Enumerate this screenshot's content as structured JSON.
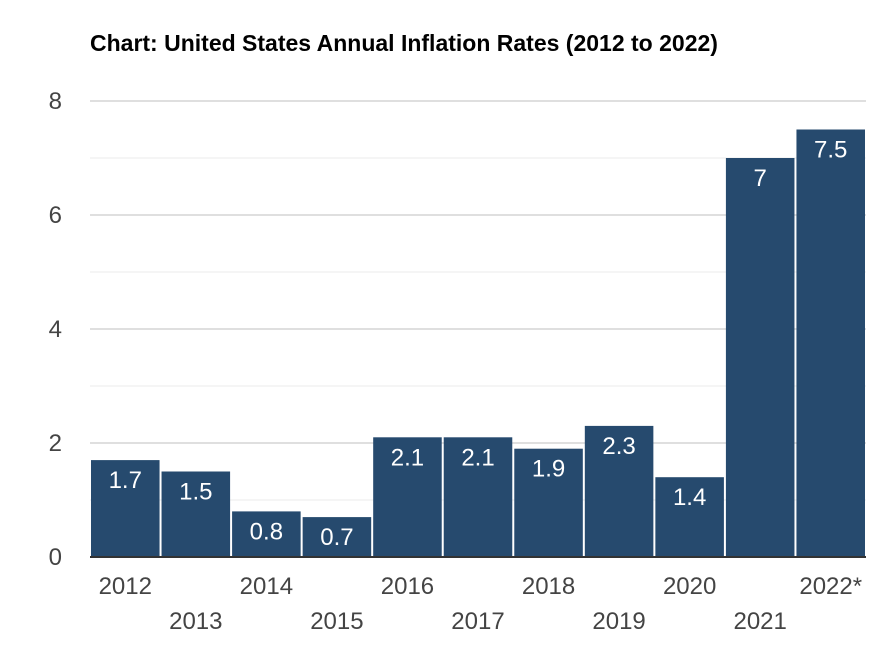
{
  "chart_data": {
    "type": "bar",
    "title": "Chart: United States Annual Inflation Rates (2012 to 2022)",
    "xlabel": "",
    "ylabel": "",
    "categories": [
      "2012",
      "2013",
      "2014",
      "2015",
      "2016",
      "2017",
      "2018",
      "2019",
      "2020",
      "2021",
      "2022*"
    ],
    "values": [
      1.7,
      1.5,
      0.8,
      0.7,
      2.1,
      2.1,
      1.9,
      2.3,
      1.4,
      7,
      7.5
    ],
    "data_labels": [
      "1.7",
      "1.5",
      "0.8",
      "0.7",
      "2.1",
      "2.1",
      "1.9",
      "2.3",
      "1.4",
      "7",
      "7.5"
    ],
    "ylim": [
      0,
      8
    ],
    "yticks": [
      "0",
      "2",
      "4",
      "6",
      "8"
    ],
    "grid": true,
    "legend": "none",
    "colors": {
      "bar": "#264a6e",
      "grid_major": "#cccccc",
      "grid_minor": "#ebebeb",
      "axis": "#333333"
    }
  }
}
